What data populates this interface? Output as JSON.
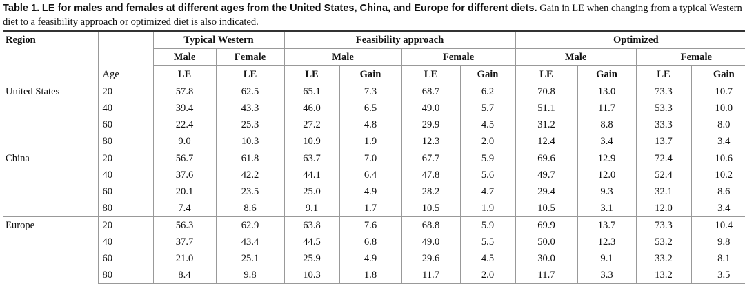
{
  "caption": {
    "label": "Table 1.",
    "title": "LE for males and females at different ages from the United States, China, and Europe for different diets.",
    "note": "Gain in LE when changing from a typical Western diet to a feasibility approach or optimized diet is also indicated."
  },
  "headers": {
    "region": "Region",
    "age": "Age",
    "typical_western": "Typical Western",
    "feasibility": "Feasibility approach",
    "optimized": "Optimized",
    "male": "Male",
    "female": "Female",
    "le": "LE",
    "gain": "Gain"
  },
  "regions": [
    {
      "name": "United States",
      "rows": [
        [
          "20",
          "57.8",
          "62.5",
          "65.1",
          "7.3",
          "68.7",
          "6.2",
          "70.8",
          "13.0",
          "73.3",
          "10.7"
        ],
        [
          "40",
          "39.4",
          "43.3",
          "46.0",
          "6.5",
          "49.0",
          "5.7",
          "51.1",
          "11.7",
          "53.3",
          "10.0"
        ],
        [
          "60",
          "22.4",
          "25.3",
          "27.2",
          "4.8",
          "29.9",
          "4.5",
          "31.2",
          "8.8",
          "33.3",
          "8.0"
        ],
        [
          "80",
          "9.0",
          "10.3",
          "10.9",
          "1.9",
          "12.3",
          "2.0",
          "12.4",
          "3.4",
          "13.7",
          "3.4"
        ]
      ]
    },
    {
      "name": "China",
      "rows": [
        [
          "20",
          "56.7",
          "61.8",
          "63.7",
          "7.0",
          "67.7",
          "5.9",
          "69.6",
          "12.9",
          "72.4",
          "10.6"
        ],
        [
          "40",
          "37.6",
          "42.2",
          "44.1",
          "6.4",
          "47.8",
          "5.6",
          "49.7",
          "12.0",
          "52.4",
          "10.2"
        ],
        [
          "60",
          "20.1",
          "23.5",
          "25.0",
          "4.9",
          "28.2",
          "4.7",
          "29.4",
          "9.3",
          "32.1",
          "8.6"
        ],
        [
          "80",
          "7.4",
          "8.6",
          "9.1",
          "1.7",
          "10.5",
          "1.9",
          "10.5",
          "3.1",
          "12.0",
          "3.4"
        ]
      ]
    },
    {
      "name": "Europe",
      "rows": [
        [
          "20",
          "56.3",
          "62.9",
          "63.8",
          "7.6",
          "68.8",
          "5.9",
          "69.9",
          "13.7",
          "73.3",
          "10.4"
        ],
        [
          "40",
          "37.7",
          "43.4",
          "44.5",
          "6.8",
          "49.0",
          "5.5",
          "50.0",
          "12.3",
          "53.2",
          "9.8"
        ],
        [
          "60",
          "21.0",
          "25.1",
          "25.9",
          "4.9",
          "29.6",
          "4.5",
          "30.0",
          "9.1",
          "33.2",
          "8.1"
        ],
        [
          "80",
          "8.4",
          "9.8",
          "10.3",
          "1.8",
          "11.7",
          "2.0",
          "11.7",
          "3.3",
          "13.2",
          "3.5"
        ]
      ]
    }
  ]
}
